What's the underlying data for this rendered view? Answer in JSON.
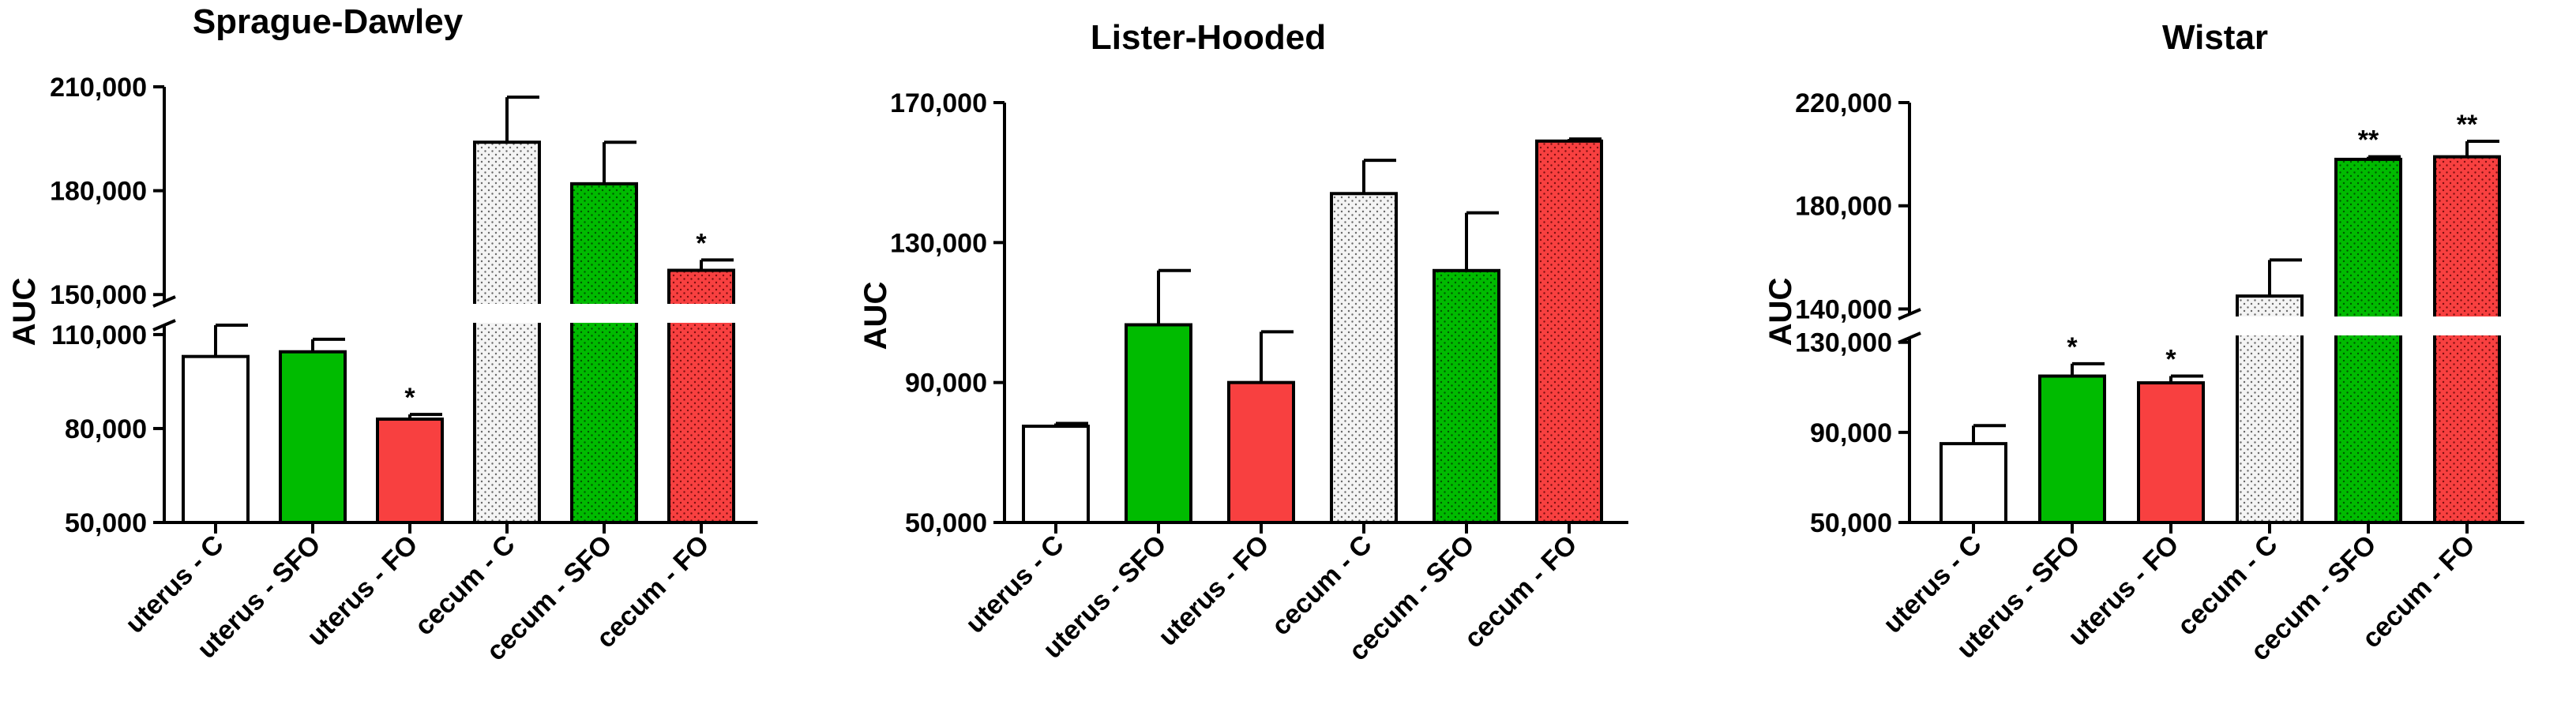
{
  "chart_data": [
    {
      "type": "bar",
      "title": "Sprague-Dawley",
      "ylabel": "AUC",
      "categories": [
        "uterus - C",
        "uterus - SFO",
        "uterus - FO",
        "cecum - C",
        "cecum - SFO",
        "cecum - FO"
      ],
      "values": [
        103000,
        104500,
        83000,
        194000,
        182000,
        157000
      ],
      "errors": [
        10000,
        4000,
        1500,
        13000,
        12000,
        3000
      ],
      "significance": [
        "",
        "",
        "*",
        "",
        "",
        "*"
      ],
      "fills": [
        "#ffffff",
        "#00bb00",
        "#f84040",
        "#f0f0f0",
        "#00bb00",
        "#f84040"
      ],
      "patterns": [
        "none",
        "none",
        "none",
        "dots",
        "dots",
        "dots"
      ],
      "ylim": [
        50000,
        210000
      ],
      "axis_break": {
        "lower_max": 113000,
        "upper_min": 148000
      },
      "yticks_lower": [
        50000,
        80000,
        110000
      ],
      "yticks_upper": [
        150000,
        180000,
        210000
      ],
      "ytick_labels_lower": [
        "50,000",
        "80,000",
        "110,000"
      ],
      "ytick_labels_upper": [
        "150,000",
        "180,000",
        "210,000"
      ]
    },
    {
      "type": "bar",
      "title": "Lister-Hooded",
      "ylabel": "AUC",
      "categories": [
        "uterus - C",
        "uterus - SFO",
        "uterus - FO",
        "cecum - C",
        "cecum - SFO",
        "cecum - FO"
      ],
      "values": [
        77500,
        106500,
        90000,
        144000,
        122000,
        159000
      ],
      "errors": [
        800,
        15500,
        14500,
        9500,
        16500,
        600
      ],
      "significance": [
        "",
        "",
        "",
        "",
        "",
        ""
      ],
      "fills": [
        "#ffffff",
        "#00bb00",
        "#f84040",
        "#f0f0f0",
        "#00bb00",
        "#f84040"
      ],
      "patterns": [
        "none",
        "none",
        "none",
        "dots",
        "dots",
        "dots"
      ],
      "ylim": [
        50000,
        170000
      ],
      "axis_break": null,
      "yticks": [
        50000,
        90000,
        130000,
        170000
      ],
      "ytick_labels": [
        "50,000",
        "90,000",
        "130,000",
        "170,000"
      ]
    },
    {
      "type": "bar",
      "title": "Wistar",
      "ylabel": "AUC",
      "categories": [
        "uterus - C",
        "uterus - SFO",
        "uterus - FO",
        "cecum - C",
        "cecum - SFO",
        "cecum - FO"
      ],
      "values": [
        85000,
        115000,
        112000,
        145000,
        198000,
        199000
      ],
      "errors": [
        8000,
        5500,
        3000,
        14000,
        1000,
        6000
      ],
      "significance": [
        "",
        "*",
        "*",
        "",
        "**",
        "**"
      ],
      "fills": [
        "#ffffff",
        "#00bb00",
        "#f84040",
        "#f0f0f0",
        "#00bb00",
        "#f84040"
      ],
      "patterns": [
        "none",
        "none",
        "none",
        "dots",
        "dots",
        "dots"
      ],
      "ylim": [
        50000,
        220000
      ],
      "axis_break": {
        "lower_max": 132000,
        "upper_min": 138000
      },
      "yticks_lower": [
        50000,
        90000,
        130000
      ],
      "yticks_upper": [
        140000,
        180000,
        220000
      ],
      "ytick_labels_lower": [
        "50,000",
        "90,000",
        "130,000"
      ],
      "ytick_labels_upper": [
        "140,000",
        "180,000",
        "220,000"
      ]
    }
  ]
}
